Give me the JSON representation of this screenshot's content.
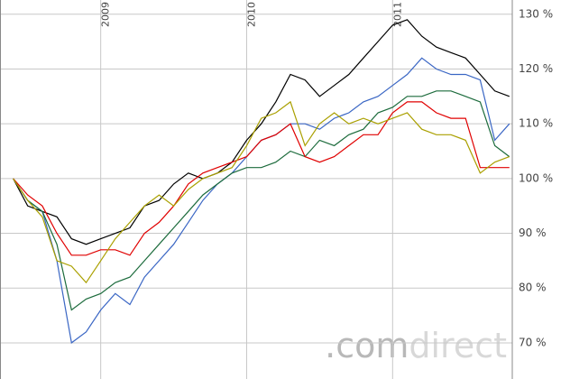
{
  "chart_data": {
    "type": "line",
    "x": [
      2008.4,
      2008.5,
      2008.6,
      2008.7,
      2008.8,
      2008.9,
      2009.0,
      2009.1,
      2009.2,
      2009.3,
      2009.4,
      2009.5,
      2009.6,
      2009.7,
      2009.8,
      2009.9,
      2010.0,
      2010.1,
      2010.2,
      2010.3,
      2010.4,
      2010.5,
      2010.6,
      2010.7,
      2010.8,
      2010.9,
      2011.0,
      2011.1,
      2011.2,
      2011.3,
      2011.4,
      2011.5,
      2011.6,
      2011.7,
      2011.8
    ],
    "series": [
      {
        "color": "#000000",
        "values": [
          100,
          95,
          94,
          93,
          89,
          88,
          89,
          90,
          91,
          95,
          96,
          99,
          101,
          100,
          101,
          103,
          107,
          110,
          114,
          119,
          118,
          115,
          117,
          119,
          122,
          125,
          128,
          129,
          126,
          124,
          123,
          122,
          119,
          116,
          115
        ]
      },
      {
        "color": "#3a66c4",
        "values": [
          100,
          96,
          94,
          85,
          70,
          72,
          76,
          79,
          77,
          82,
          85,
          88,
          92,
          96,
          99,
          101,
          104,
          107,
          108,
          110,
          110,
          109,
          111,
          112,
          114,
          115,
          117,
          119,
          122,
          120,
          119,
          119,
          118,
          107,
          110
        ]
      },
      {
        "color": "#1c6b3c",
        "values": [
          100,
          96,
          94,
          88,
          76,
          78,
          79,
          81,
          82,
          85,
          88,
          91,
          94,
          97,
          99,
          101,
          102,
          102,
          103,
          105,
          104,
          107,
          106,
          108,
          109,
          112,
          113,
          115,
          115,
          116,
          116,
          115,
          114,
          106,
          104
        ]
      },
      {
        "color": "#e00000",
        "values": [
          100,
          97,
          95,
          90,
          86,
          86,
          87,
          87,
          86,
          90,
          92,
          95,
          99,
          101,
          102,
          103,
          104,
          107,
          108,
          110,
          104,
          103,
          104,
          106,
          108,
          108,
          112,
          114,
          114,
          112,
          111,
          111,
          102,
          102,
          102
        ]
      },
      {
        "color": "#aaa000",
        "values": [
          100,
          96,
          93,
          85,
          84,
          81,
          85,
          89,
          92,
          95,
          97,
          95,
          98,
          100,
          101,
          102,
          106,
          111,
          112,
          114,
          106,
          110,
          112,
          110,
          111,
          110,
          111,
          112,
          109,
          108,
          108,
          107,
          101,
          103,
          104
        ]
      }
    ],
    "xlim": [
      2008.31,
      2011.82
    ],
    "xticks": [
      2009,
      2010,
      2011
    ],
    "ylim": [
      63.4,
      132.6
    ],
    "yticks": [
      {
        "value": 70,
        "label": "70 %"
      },
      {
        "value": 80,
        "label": "80 %"
      },
      {
        "value": 90,
        "label": "90 %"
      },
      {
        "value": 100,
        "label": "100 %"
      },
      {
        "value": 110,
        "label": "110 %"
      },
      {
        "value": 120,
        "label": "120 %"
      },
      {
        "value": 130,
        "label": "130 %"
      }
    ],
    "grid": true,
    "watermark": {
      "prefix": ".com",
      "suffix": "direct"
    }
  }
}
